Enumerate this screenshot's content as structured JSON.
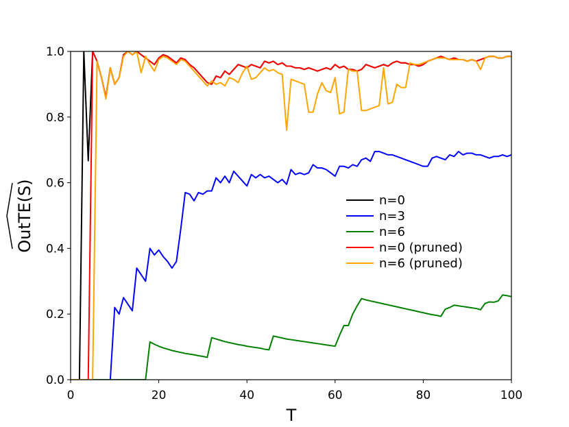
{
  "chart_data": {
    "type": "line",
    "xlabel": "T",
    "ylabel": "OutTE(S)",
    "x": [
      0,
      1,
      2,
      3,
      4,
      5,
      6,
      7,
      8,
      9,
      10,
      11,
      12,
      13,
      14,
      15,
      16,
      17,
      18,
      19,
      20,
      21,
      22,
      23,
      24,
      25,
      26,
      27,
      28,
      29,
      30,
      31,
      32,
      33,
      34,
      35,
      36,
      37,
      38,
      39,
      40,
      41,
      42,
      43,
      44,
      45,
      46,
      47,
      48,
      49,
      50,
      51,
      52,
      53,
      54,
      55,
      56,
      57,
      58,
      59,
      60,
      61,
      62,
      63,
      64,
      65,
      66,
      67,
      68,
      69,
      70,
      71,
      72,
      73,
      74,
      75,
      76,
      77,
      78,
      79,
      80,
      81,
      82,
      83,
      84,
      85,
      86,
      87,
      88,
      89,
      90,
      91,
      92,
      93,
      94,
      95,
      96,
      97,
      98,
      99,
      100
    ],
    "series": [
      {
        "name": "n=0",
        "color": "#000000",
        "values": [
          0,
          0,
          0,
          1.0,
          0.667,
          1.0,
          0.97,
          0.92,
          0.86,
          0.95,
          0.9,
          0.92,
          0.99,
          1.0,
          0.99,
          1.0,
          0.99,
          0.98,
          0.97,
          0.96,
          0.98,
          0.99,
          0.985,
          0.975,
          0.965,
          0.98,
          0.975,
          0.96,
          0.95,
          0.935,
          0.92,
          0.905,
          0.9,
          0.925,
          0.92,
          0.94,
          0.93,
          0.945,
          0.96,
          0.955,
          0.95,
          0.96,
          0.955,
          0.95,
          0.97,
          0.965,
          0.97,
          0.96,
          0.965,
          0.955,
          0.955,
          0.95,
          0.95,
          0.945,
          0.95,
          0.945,
          0.94,
          0.945,
          0.95,
          0.945,
          0.96,
          0.95,
          0.955,
          0.945,
          0.945,
          0.94,
          0.945,
          0.96,
          0.955,
          0.95,
          0.955,
          0.96,
          0.955,
          0.965,
          0.97,
          0.965,
          0.965,
          0.96,
          0.96,
          0.955,
          0.96,
          0.97,
          0.975,
          0.98,
          0.985,
          0.98,
          0.975,
          0.98,
          0.975,
          0.975,
          0.97,
          0.975,
          0.97,
          0.975,
          0.98,
          0.985,
          0.985,
          0.98,
          0.98,
          0.985,
          0.985
        ]
      },
      {
        "name": "n=3",
        "color": "#0000ff",
        "values": [
          0,
          0,
          0,
          0,
          0,
          0,
          0,
          0,
          0,
          0,
          0.22,
          0.2,
          0.25,
          0.23,
          0.21,
          0.34,
          0.32,
          0.3,
          0.4,
          0.38,
          0.395,
          0.375,
          0.36,
          0.34,
          0.36,
          0.46,
          0.57,
          0.565,
          0.545,
          0.57,
          0.565,
          0.575,
          0.575,
          0.615,
          0.6,
          0.62,
          0.6,
          0.635,
          0.62,
          0.605,
          0.59,
          0.625,
          0.615,
          0.625,
          0.615,
          0.62,
          0.61,
          0.6,
          0.61,
          0.595,
          0.64,
          0.625,
          0.63,
          0.625,
          0.63,
          0.655,
          0.645,
          0.645,
          0.64,
          0.63,
          0.62,
          0.65,
          0.65,
          0.645,
          0.655,
          0.65,
          0.67,
          0.675,
          0.665,
          0.695,
          0.695,
          0.69,
          0.685,
          0.685,
          0.68,
          0.675,
          0.67,
          0.665,
          0.66,
          0.655,
          0.65,
          0.65,
          0.675,
          0.68,
          0.675,
          0.67,
          0.685,
          0.68,
          0.695,
          0.685,
          0.69,
          0.69,
          0.685,
          0.685,
          0.68,
          0.675,
          0.68,
          0.68,
          0.685,
          0.68,
          0.685
        ]
      },
      {
        "name": "n=6",
        "color": "#008000",
        "values": [
          0,
          0,
          0,
          0,
          0,
          0,
          0,
          0,
          0,
          0,
          0,
          0,
          0,
          0,
          0,
          0,
          0,
          0,
          0.115,
          0.108,
          0.102,
          0.097,
          0.093,
          0.089,
          0.086,
          0.083,
          0.08,
          0.078,
          0.076,
          0.073,
          0.071,
          0.068,
          0.128,
          0.124,
          0.12,
          0.116,
          0.113,
          0.11,
          0.107,
          0.105,
          0.102,
          0.1,
          0.098,
          0.096,
          0.093,
          0.091,
          0.133,
          0.13,
          0.127,
          0.124,
          0.122,
          0.12,
          0.118,
          0.116,
          0.114,
          0.112,
          0.11,
          0.108,
          0.106,
          0.104,
          0.102,
          0.135,
          0.165,
          0.165,
          0.2,
          0.225,
          0.247,
          0.243,
          0.24,
          0.237,
          0.234,
          0.231,
          0.228,
          0.225,
          0.222,
          0.219,
          0.216,
          0.213,
          0.21,
          0.207,
          0.204,
          0.201,
          0.198,
          0.196,
          0.193,
          0.215,
          0.22,
          0.227,
          0.225,
          0.223,
          0.221,
          0.219,
          0.217,
          0.213,
          0.232,
          0.237,
          0.236,
          0.24,
          0.258,
          0.256,
          0.253
        ]
      },
      {
        "name": "n=0 (pruned)",
        "color": "#ff0000",
        "values": [
          0,
          0,
          0,
          0,
          0,
          1.0,
          0.97,
          0.92,
          0.86,
          0.95,
          0.9,
          0.92,
          0.99,
          1.0,
          0.99,
          1.0,
          0.99,
          0.98,
          0.97,
          0.96,
          0.98,
          0.99,
          0.985,
          0.975,
          0.965,
          0.98,
          0.975,
          0.96,
          0.95,
          0.935,
          0.92,
          0.905,
          0.9,
          0.925,
          0.92,
          0.94,
          0.93,
          0.945,
          0.96,
          0.955,
          0.95,
          0.96,
          0.955,
          0.95,
          0.97,
          0.965,
          0.97,
          0.96,
          0.965,
          0.955,
          0.955,
          0.95,
          0.95,
          0.945,
          0.95,
          0.945,
          0.94,
          0.945,
          0.95,
          0.945,
          0.96,
          0.95,
          0.955,
          0.945,
          0.945,
          0.94,
          0.945,
          0.96,
          0.955,
          0.95,
          0.955,
          0.96,
          0.955,
          0.965,
          0.97,
          0.965,
          0.965,
          0.96,
          0.96,
          0.955,
          0.96,
          0.97,
          0.975,
          0.98,
          0.985,
          0.98,
          0.975,
          0.98,
          0.975,
          0.975,
          0.97,
          0.975,
          0.97,
          0.975,
          0.98,
          0.985,
          0.985,
          0.98,
          0.98,
          0.985,
          0.985
        ]
      },
      {
        "name": "n=6 (pruned)",
        "color": "#ffa500",
        "values": [
          0,
          0,
          0,
          0,
          0,
          0,
          0.97,
          0.92,
          0.855,
          0.95,
          0.9,
          0.92,
          0.985,
          1.0,
          0.99,
          1.0,
          0.935,
          0.985,
          0.96,
          0.94,
          0.975,
          0.985,
          0.98,
          0.97,
          0.96,
          0.975,
          0.97,
          0.955,
          0.94,
          0.925,
          0.91,
          0.895,
          0.91,
          0.9,
          0.905,
          0.895,
          0.92,
          0.915,
          0.905,
          0.935,
          0.955,
          0.915,
          0.92,
          0.935,
          0.95,
          0.94,
          0.945,
          0.935,
          0.93,
          0.76,
          0.915,
          0.91,
          0.905,
          0.9,
          0.815,
          0.815,
          0.87,
          0.905,
          0.88,
          0.875,
          0.92,
          0.81,
          0.815,
          0.945,
          0.94,
          0.94,
          0.82,
          0.82,
          0.825,
          0.83,
          0.835,
          0.95,
          0.84,
          0.845,
          0.9,
          0.89,
          0.89,
          0.965,
          0.96,
          0.96,
          0.965,
          0.97,
          0.975,
          0.98,
          0.98,
          0.98,
          0.975,
          0.975,
          0.975,
          0.975,
          0.97,
          0.975,
          0.97,
          0.945,
          0.98,
          0.985,
          0.985,
          0.98,
          0.98,
          0.985,
          0.985
        ]
      }
    ],
    "xlim": [
      0,
      100
    ],
    "ylim": [
      0,
      1.0
    ],
    "xticks": [
      0,
      20,
      40,
      60,
      80,
      100
    ],
    "yticks": [
      {
        "value": 0,
        "label": "0.0"
      },
      {
        "value": 0.2,
        "label": "0.2"
      },
      {
        "value": 0.4,
        "label": "0.4"
      },
      {
        "value": 0.6,
        "label": "0.6"
      },
      {
        "value": 0.8,
        "label": "0.8"
      },
      {
        "value": 1.0,
        "label": "1.0"
      }
    ],
    "legend": "center right",
    "grid": false
  }
}
